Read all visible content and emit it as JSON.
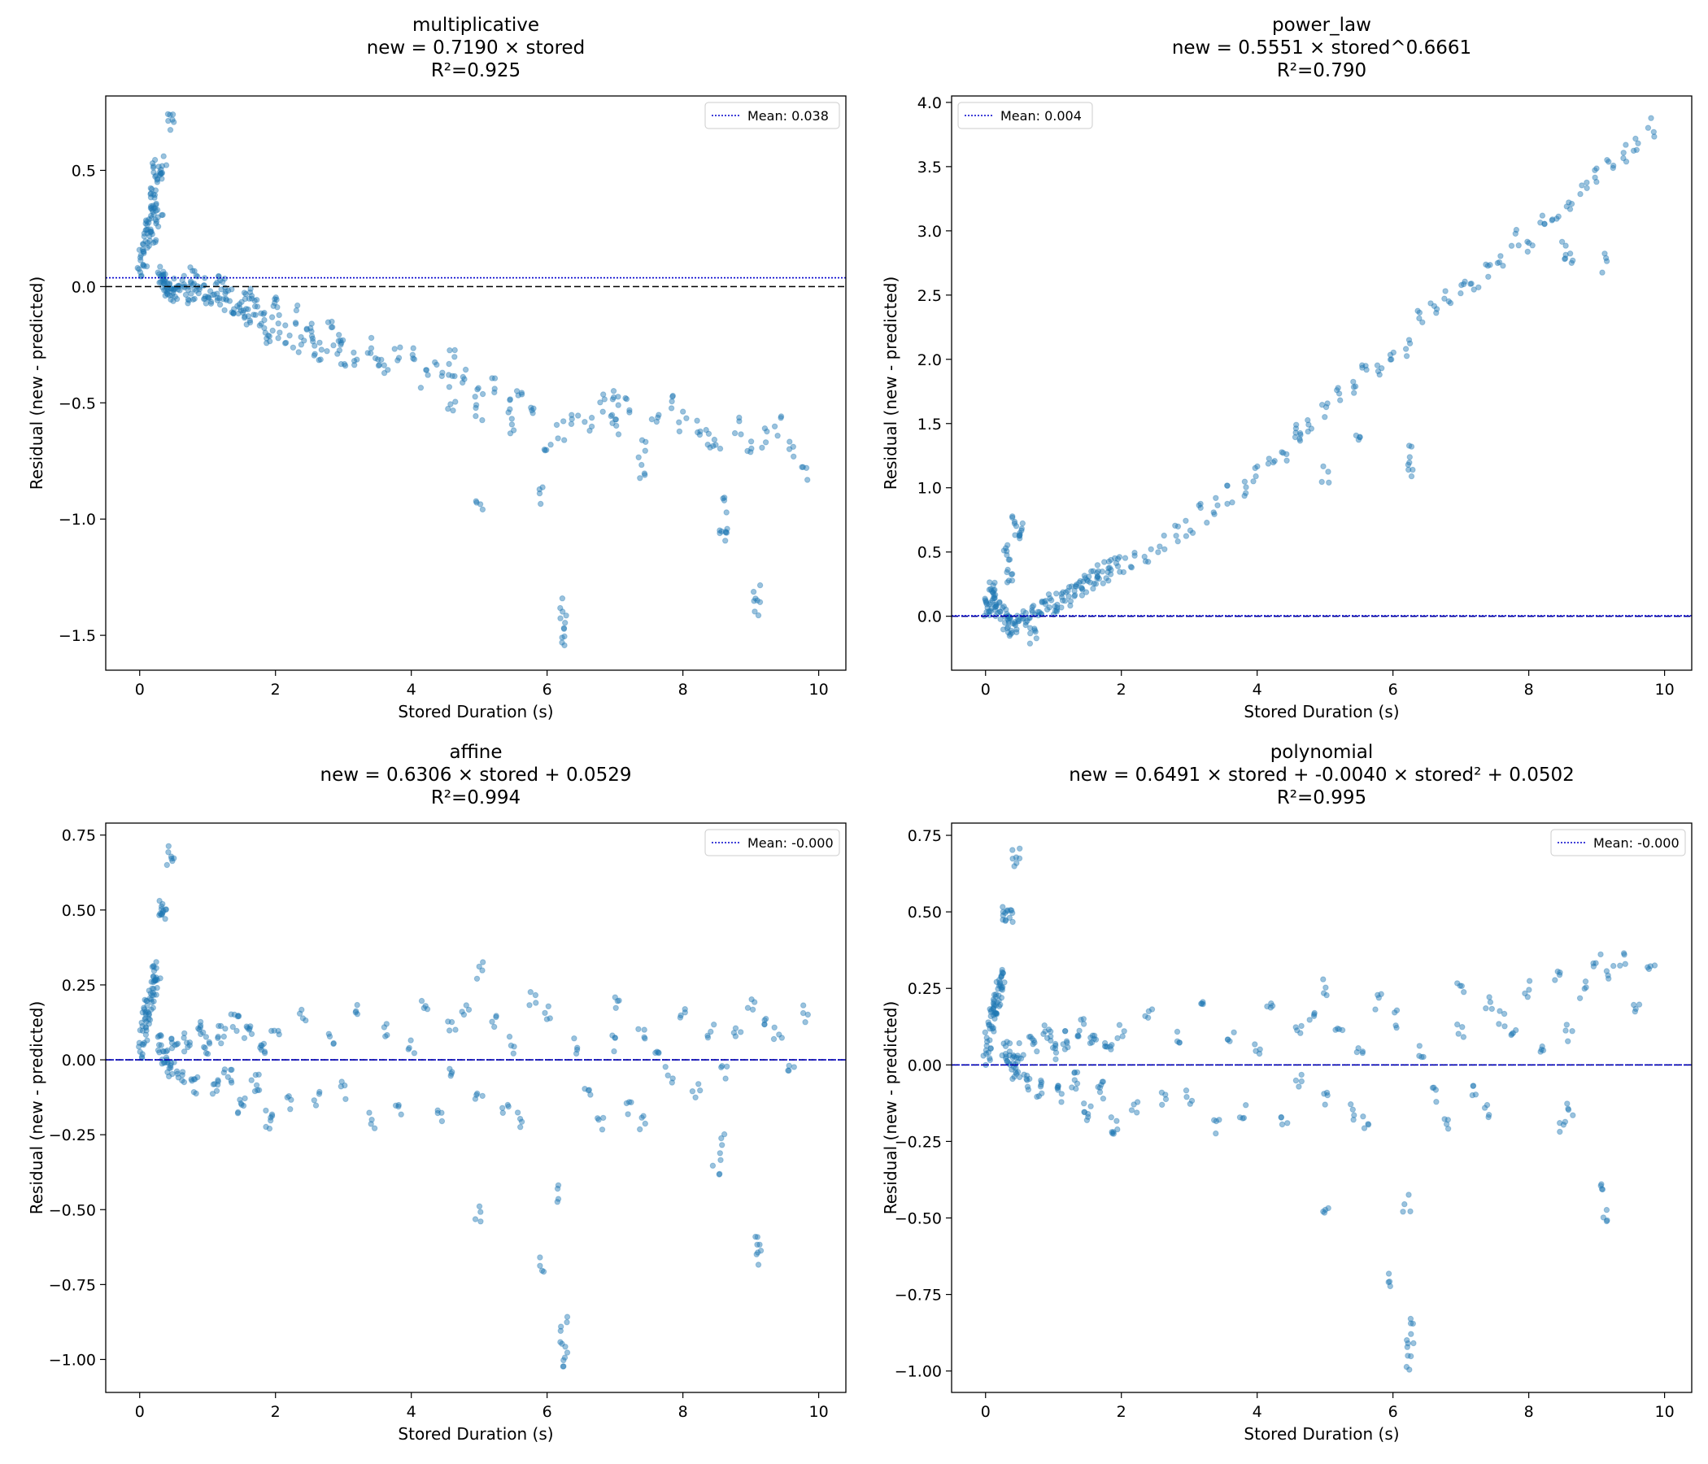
{
  "chart_data": [
    {
      "type": "scatter",
      "title": [
        "multiplicative",
        "new = 0.7190 × stored",
        "R²=0.925"
      ],
      "xlabel": "Stored Duration (s)",
      "ylabel": "Residual (new - predicted)",
      "xlim": [
        -0.5,
        10.4
      ],
      "ylim": [
        -1.65,
        0.82
      ],
      "xticks": [
        0,
        2,
        4,
        6,
        8,
        10
      ],
      "xtick_labels": [
        "0",
        "2",
        "4",
        "6",
        "8",
        "10"
      ],
      "yticks": [
        0.5,
        0.0,
        -0.5,
        -1.0,
        -1.5
      ],
      "ytick_labels": [
        "0.5",
        "0.0",
        "−0.5",
        "−1.0",
        "−1.5"
      ],
      "zero_line": 0,
      "mean_line": 0.038,
      "legend": "Mean: 0.038",
      "legend_position": "upper right",
      "grid": false,
      "series": [
        {
          "color": "#1f77b4",
          "x": [
            0.02,
            0.05,
            0.08,
            0.1,
            0.12,
            0.15,
            0.18,
            0.2,
            0.22,
            0.25,
            0.28,
            0.3,
            0.32,
            0.35,
            0.4,
            0.45,
            0.5,
            0.55,
            0.6,
            0.7,
            0.8,
            0.9,
            1.0,
            1.1,
            1.2,
            1.3,
            1.4,
            1.5,
            1.6,
            1.7,
            1.8,
            1.9,
            2.0,
            2.1,
            2.2,
            2.3,
            2.4,
            2.5,
            2.6,
            2.7,
            2.8,
            2.9,
            3.0,
            3.2,
            3.4,
            3.6,
            3.8,
            4.0,
            4.2,
            4.4,
            4.6,
            4.6,
            4.6,
            4.8,
            5.0,
            5.0,
            5.0,
            5.2,
            5.4,
            5.5,
            5.6,
            5.8,
            5.9,
            6.0,
            6.2,
            6.25,
            6.25,
            6.25,
            6.4,
            6.6,
            6.8,
            7.0,
            7.0,
            7.0,
            7.2,
            7.4,
            7.4,
            7.6,
            7.8,
            8.0,
            8.2,
            8.4,
            8.5,
            8.6,
            8.6,
            8.6,
            8.8,
            9.0,
            9.1,
            9.1,
            9.2,
            9.4,
            9.6,
            9.8,
            0.2,
            0.3,
            0.35,
            0.45,
            0.8,
            1.2,
            1.6,
            2.0,
            2.5,
            3.0,
            3.5
          ],
          "y": [
            0.08,
            0.12,
            0.18,
            0.22,
            0.25,
            0.3,
            0.33,
            0.38,
            0.42,
            0.52,
            0.5,
            0.05,
            0.02,
            0.0,
            0.01,
            -0.02,
            0.0,
            -0.03,
            0.02,
            -0.04,
            -0.02,
            0.01,
            -0.05,
            -0.03,
            -0.06,
            -0.02,
            -0.08,
            -0.1,
            -0.12,
            -0.08,
            -0.15,
            -0.2,
            -0.1,
            -0.18,
            -0.22,
            -0.12,
            -0.25,
            -0.2,
            -0.28,
            -0.3,
            -0.18,
            -0.25,
            -0.22,
            -0.3,
            -0.25,
            -0.35,
            -0.28,
            -0.3,
            -0.4,
            -0.35,
            -0.3,
            -0.4,
            -0.5,
            -0.38,
            -0.45,
            -0.55,
            -0.93,
            -0.42,
            -0.5,
            -0.6,
            -0.48,
            -0.55,
            -0.9,
            -0.7,
            -0.62,
            -1.38,
            -1.45,
            -1.52,
            -0.55,
            -0.6,
            -0.5,
            -0.45,
            -0.55,
            -0.6,
            -0.5,
            -0.7,
            -0.8,
            -0.55,
            -0.5,
            -0.58,
            -0.6,
            -0.65,
            -0.7,
            -0.95,
            -1.02,
            -1.08,
            -0.6,
            -0.7,
            -1.32,
            -1.38,
            -0.65,
            -0.6,
            -0.7,
            -0.8,
            0.2,
            0.3,
            0.52,
            0.7,
            0.05,
            0.02,
            -0.05,
            -0.08,
            -0.2,
            -0.3,
            -0.35
          ]
        }
      ]
    },
    {
      "type": "scatter",
      "title": [
        "power_law",
        "new = 0.5551 × stored^0.6661",
        "R²=0.790"
      ],
      "xlabel": "Stored Duration (s)",
      "ylabel": "Residual (new - predicted)",
      "xlim": [
        -0.5,
        10.4
      ],
      "ylim": [
        -0.42,
        4.05
      ],
      "xticks": [
        0,
        2,
        4,
        6,
        8,
        10
      ],
      "xtick_labels": [
        "0",
        "2",
        "4",
        "6",
        "8",
        "10"
      ],
      "yticks": [
        0.0,
        0.5,
        1.0,
        1.5,
        2.0,
        2.5,
        3.0,
        3.5,
        4.0
      ],
      "ytick_labels": [
        "0.0",
        "0.5",
        "1.0",
        "1.5",
        "2.0",
        "2.5",
        "3.0",
        "3.5",
        "4.0"
      ],
      "zero_line": 0,
      "mean_line": 0.004,
      "legend": "Mean: 0.004",
      "legend_position": "upper left",
      "grid": false,
      "series": [
        {
          "color": "#1f77b4",
          "x": [
            0.02,
            0.05,
            0.08,
            0.1,
            0.15,
            0.2,
            0.25,
            0.3,
            0.35,
            0.4,
            0.5,
            0.6,
            0.7,
            0.8,
            0.9,
            1.0,
            1.1,
            1.2,
            1.3,
            1.4,
            1.5,
            1.6,
            1.7,
            1.8,
            1.9,
            2.0,
            2.2,
            2.4,
            2.6,
            2.8,
            3.0,
            3.2,
            3.4,
            3.6,
            3.8,
            4.0,
            4.2,
            4.4,
            4.6,
            4.6,
            4.8,
            5.0,
            5.0,
            5.2,
            5.4,
            5.5,
            5.6,
            5.8,
            6.0,
            6.2,
            6.25,
            6.25,
            6.4,
            6.6,
            6.8,
            7.0,
            7.2,
            7.4,
            7.6,
            7.8,
            8.0,
            8.2,
            8.4,
            8.5,
            8.6,
            8.6,
            8.8,
            9.0,
            9.1,
            9.2,
            9.4,
            9.6,
            9.8,
            0.3,
            0.35,
            0.45,
            0.5,
            0.7
          ],
          "y": [
            0.05,
            0.1,
            0.15,
            0.2,
            0.1,
            0.05,
            0.0,
            -0.05,
            -0.08,
            -0.1,
            -0.05,
            0.0,
            0.02,
            0.05,
            0.1,
            0.08,
            0.12,
            0.15,
            0.18,
            0.22,
            0.25,
            0.28,
            0.32,
            0.35,
            0.38,
            0.4,
            0.45,
            0.5,
            0.55,
            0.65,
            0.7,
            0.8,
            0.85,
            0.95,
            1.0,
            1.1,
            1.15,
            1.25,
            1.4,
            1.45,
            1.5,
            1.6,
            1.1,
            1.7,
            1.75,
            1.45,
            1.9,
            1.95,
            2.05,
            2.1,
            1.15,
            1.25,
            2.3,
            2.4,
            2.5,
            2.55,
            2.6,
            2.7,
            2.8,
            2.95,
            2.9,
            3.05,
            3.1,
            2.85,
            2.8,
            3.2,
            3.3,
            3.45,
            2.75,
            3.5,
            3.6,
            3.65,
            3.8,
            0.5,
            0.3,
            0.7,
            0.65,
            -0.15
          ]
        }
      ]
    },
    {
      "type": "scatter",
      "title": [
        "affine",
        "new = 0.6306 × stored + 0.0529",
        "R²=0.994"
      ],
      "xlabel": "Stored Duration (s)",
      "ylabel": "Residual (new - predicted)",
      "xlim": [
        -0.5,
        10.4
      ],
      "ylim": [
        -1.11,
        0.79
      ],
      "xticks": [
        0,
        2,
        4,
        6,
        8,
        10
      ],
      "xtick_labels": [
        "0",
        "2",
        "4",
        "6",
        "8",
        "10"
      ],
      "yticks": [
        0.75,
        0.5,
        0.25,
        0.0,
        -0.25,
        -0.5,
        -0.75,
        -1.0
      ],
      "ytick_labels": [
        "0.75",
        "0.50",
        "0.25",
        "0.00",
        "−0.25",
        "−0.50",
        "−0.75",
        "−1.00"
      ],
      "zero_line": 0,
      "mean_line": 0.0,
      "legend": "Mean: -0.000",
      "legend_position": "upper right",
      "grid": false,
      "series": [
        {
          "color": "#1f77b4",
          "x": [
            0.02,
            0.05,
            0.08,
            0.1,
            0.12,
            0.15,
            0.18,
            0.2,
            0.22,
            0.25,
            0.3,
            0.35,
            0.4,
            0.45,
            0.5,
            0.6,
            0.7,
            0.8,
            0.9,
            1.0,
            1.1,
            1.2,
            1.3,
            1.4,
            1.5,
            1.6,
            1.7,
            1.8,
            1.9,
            2.0,
            2.2,
            2.4,
            2.6,
            2.8,
            3.0,
            3.2,
            3.4,
            3.6,
            3.8,
            4.0,
            4.2,
            4.4,
            4.6,
            4.6,
            4.8,
            5.0,
            5.0,
            5.0,
            5.2,
            5.4,
            5.5,
            5.6,
            5.8,
            5.9,
            6.0,
            6.2,
            6.25,
            6.25,
            6.25,
            6.4,
            6.6,
            6.8,
            7.0,
            7.0,
            7.2,
            7.4,
            7.4,
            7.6,
            7.8,
            8.0,
            8.2,
            8.4,
            8.5,
            8.6,
            8.6,
            8.8,
            9.0,
            9.1,
            9.1,
            9.2,
            9.4,
            9.6,
            9.8,
            0.3,
            0.35,
            0.45
          ],
          "y": [
            0.03,
            0.08,
            0.12,
            0.15,
            0.18,
            0.2,
            0.22,
            0.25,
            0.28,
            0.3,
            0.05,
            0.02,
            0.0,
            -0.03,
            0.04,
            -0.05,
            0.06,
            -0.08,
            0.1,
            0.05,
            -0.1,
            0.08,
            -0.05,
            0.12,
            -0.15,
            0.1,
            -0.08,
            0.05,
            -0.2,
            0.1,
            -0.15,
            0.15,
            -0.12,
            0.08,
            -0.1,
            0.18,
            -0.2,
            0.1,
            -0.15,
            0.05,
            0.2,
            -0.18,
            0.1,
            -0.05,
            0.15,
            0.3,
            -0.52,
            -0.1,
            0.12,
            -0.15,
            0.05,
            -0.2,
            0.2,
            -0.68,
            0.15,
            -0.45,
            -0.88,
            -0.95,
            -1.02,
            0.05,
            -0.1,
            -0.2,
            0.2,
            0.05,
            -0.15,
            -0.2,
            0.1,
            0.05,
            -0.05,
            0.15,
            -0.1,
            0.1,
            -0.35,
            -0.28,
            -0.05,
            0.1,
            0.2,
            -0.6,
            -0.66,
            0.15,
            0.1,
            -0.05,
            0.15,
            0.5,
            0.48,
            0.68
          ]
        }
      ]
    },
    {
      "type": "scatter",
      "title": [
        "polynomial",
        "new = 0.6491 × stored + -0.0040 × stored² + 0.0502",
        "R²=0.995"
      ],
      "xlabel": "Stored Duration (s)",
      "ylabel": "Residual (new - predicted)",
      "xlim": [
        -0.5,
        10.4
      ],
      "ylim": [
        -1.07,
        0.79
      ],
      "xticks": [
        0,
        2,
        4,
        6,
        8,
        10
      ],
      "xtick_labels": [
        "0",
        "2",
        "4",
        "6",
        "8",
        "10"
      ],
      "yticks": [
        0.75,
        0.5,
        0.25,
        0.0,
        -0.25,
        -0.5,
        -0.75,
        -1.0
      ],
      "ytick_labels": [
        "0.75",
        "0.50",
        "0.25",
        "0.00",
        "−0.25",
        "−0.50",
        "−0.75",
        "−1.00"
      ],
      "zero_line": 0,
      "mean_line": 0.0,
      "legend": "Mean: -0.000",
      "legend_position": "upper right",
      "grid": false,
      "series": [
        {
          "color": "#1f77b4",
          "x": [
            0.02,
            0.05,
            0.08,
            0.1,
            0.12,
            0.15,
            0.18,
            0.2,
            0.22,
            0.25,
            0.3,
            0.35,
            0.4,
            0.45,
            0.5,
            0.6,
            0.7,
            0.8,
            0.9,
            1.0,
            1.1,
            1.2,
            1.3,
            1.4,
            1.5,
            1.6,
            1.7,
            1.8,
            1.9,
            2.0,
            2.2,
            2.4,
            2.6,
            2.8,
            3.0,
            3.2,
            3.4,
            3.6,
            3.8,
            4.0,
            4.2,
            4.4,
            4.6,
            4.6,
            4.8,
            5.0,
            5.0,
            5.0,
            5.2,
            5.4,
            5.5,
            5.6,
            5.8,
            5.9,
            6.0,
            6.2,
            6.25,
            6.25,
            6.25,
            6.4,
            6.6,
            6.8,
            7.0,
            7.0,
            7.2,
            7.4,
            7.4,
            7.6,
            7.8,
            8.0,
            8.2,
            8.4,
            8.5,
            8.6,
            8.6,
            8.8,
            9.0,
            9.1,
            9.1,
            9.2,
            9.4,
            9.6,
            9.8,
            0.3,
            0.35,
            0.45
          ],
          "y": [
            0.03,
            0.08,
            0.12,
            0.15,
            0.18,
            0.2,
            0.22,
            0.25,
            0.28,
            0.3,
            0.05,
            0.02,
            0.0,
            -0.03,
            0.04,
            -0.05,
            0.06,
            -0.08,
            0.1,
            0.05,
            -0.1,
            0.08,
            -0.05,
            0.12,
            -0.15,
            0.1,
            -0.08,
            0.05,
            -0.2,
            0.1,
            -0.15,
            0.15,
            -0.12,
            0.08,
            -0.1,
            0.18,
            -0.2,
            0.1,
            -0.15,
            0.05,
            0.2,
            -0.18,
            0.1,
            -0.05,
            0.15,
            0.25,
            -0.5,
            -0.1,
            0.1,
            -0.15,
            0.05,
            -0.2,
            0.2,
            -0.7,
            0.15,
            -0.45,
            -0.85,
            -0.92,
            -0.98,
            0.05,
            -0.1,
            -0.2,
            0.25,
            0.1,
            -0.1,
            -0.15,
            0.2,
            0.15,
            0.1,
            0.25,
            0.05,
            0.3,
            -0.2,
            -0.15,
            0.1,
            0.25,
            0.35,
            -0.4,
            -0.5,
            0.3,
            0.35,
            0.2,
            0.3,
            0.5,
            0.48,
            0.68
          ]
        }
      ]
    }
  ]
}
